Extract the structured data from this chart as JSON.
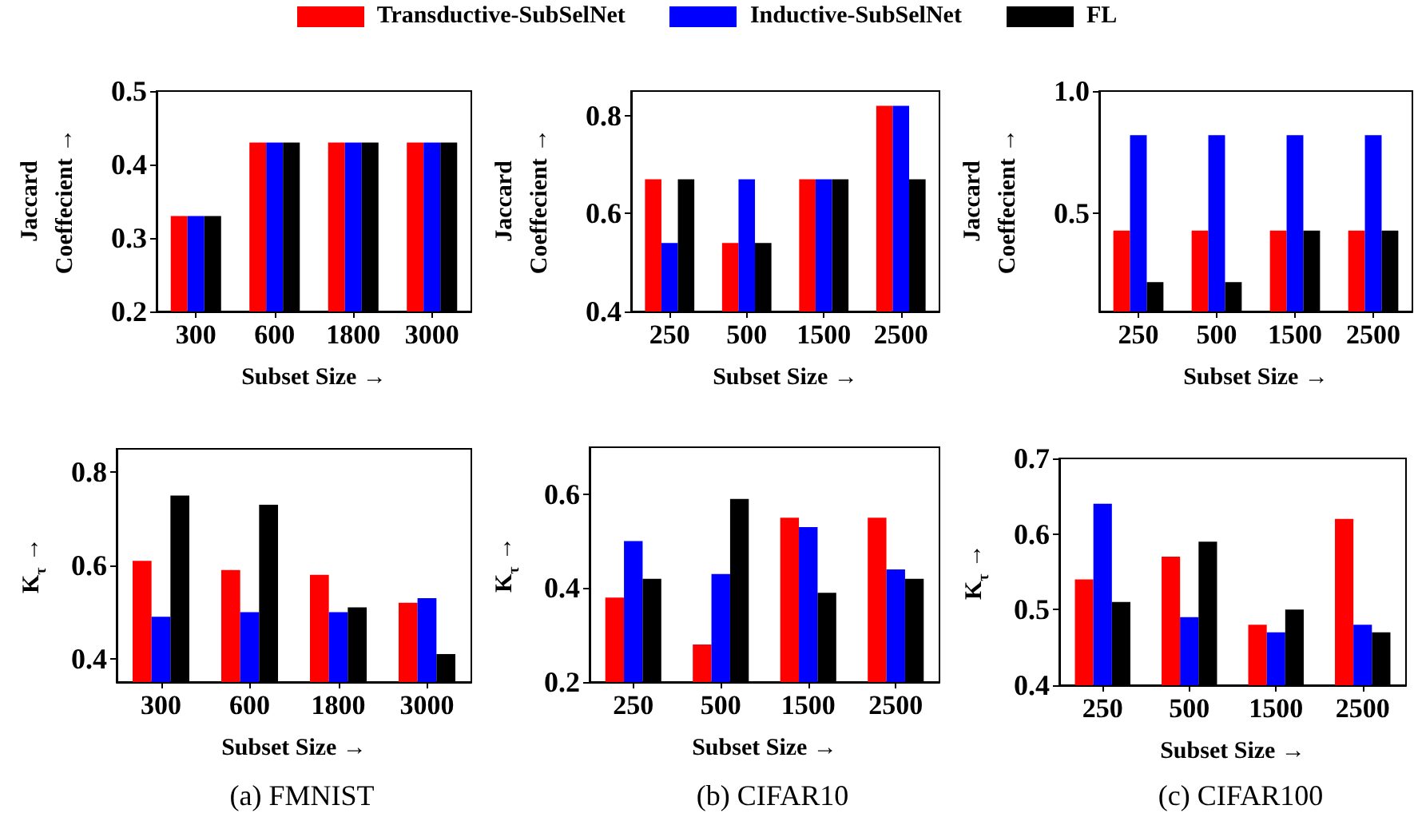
{
  "chart_data": [
    {
      "type": "bar",
      "xlabel": "Subset Size →",
      "ylabel": "Jaccard\nCoeffecient →",
      "categories": [
        "300",
        "600",
        "1800",
        "3000"
      ],
      "ylim": [
        0.2,
        0.5
      ],
      "yticks": [
        0.2,
        0.3,
        0.4,
        0.5
      ],
      "grid": false,
      "legend": "top",
      "series": [
        {
          "name": "Transductive-SubSelNet",
          "color": "#ff0000",
          "values": [
            0.33,
            0.43,
            0.43,
            0.43
          ]
        },
        {
          "name": "Inductive-SubSelNet",
          "color": "#0000ff",
          "values": [
            0.33,
            0.43,
            0.43,
            0.43
          ]
        },
        {
          "name": "FL",
          "color": "#000000",
          "values": [
            0.33,
            0.43,
            0.43,
            0.43
          ]
        }
      ]
    },
    {
      "type": "bar",
      "xlabel": "Subset Size →",
      "ylabel": "Jaccard\nCoeffecient →",
      "categories": [
        "250",
        "500",
        "1500",
        "2500"
      ],
      "ylim": [
        0.4,
        0.85
      ],
      "yticks": [
        0.4,
        0.6,
        0.8
      ],
      "grid": false,
      "series": [
        {
          "color": "#ff0000",
          "values": [
            0.67,
            0.54,
            0.67,
            0.82
          ]
        },
        {
          "color": "#0000ff",
          "values": [
            0.54,
            0.67,
            0.67,
            0.82
          ]
        },
        {
          "color": "#000000",
          "values": [
            0.67,
            0.54,
            0.67,
            0.67
          ]
        }
      ]
    },
    {
      "type": "bar",
      "xlabel": "Subset Size →",
      "ylabel": "Jaccard\nCoeffecient →",
      "categories": [
        "250",
        "500",
        "1500",
        "2500"
      ],
      "ylim": [
        0.1,
        1.0
      ],
      "yticks": [
        {
          "value": 0.5,
          "label": "0.5"
        },
        {
          "value": 1.0,
          "label": "1.0"
        }
      ],
      "grid": false,
      "series": [
        {
          "color": "#ff0000",
          "values": [
            0.43,
            0.43,
            0.43,
            0.43
          ]
        },
        {
          "color": "#0000ff",
          "values": [
            0.82,
            0.82,
            0.82,
            0.82
          ]
        },
        {
          "color": "#000000",
          "values": [
            0.22,
            0.22,
            0.43,
            0.43
          ]
        }
      ]
    },
    {
      "type": "bar",
      "xlabel": "Subset Size →",
      "ylabel": "K$_{τ}$ →",
      "categories": [
        "300",
        "600",
        "1800",
        "3000"
      ],
      "ylim": [
        0.35,
        0.85
      ],
      "yticks": [
        0.4,
        0.6,
        0.8
      ],
      "grid": false,
      "annotations": [
        "(a) FMNIST"
      ],
      "series": [
        {
          "color": "#ff0000",
          "values": [
            0.61,
            0.59,
            0.58,
            0.52
          ]
        },
        {
          "color": "#0000ff",
          "values": [
            0.49,
            0.5,
            0.5,
            0.53
          ]
        },
        {
          "color": "#000000",
          "values": [
            0.75,
            0.73,
            0.51,
            0.41
          ]
        }
      ]
    },
    {
      "type": "bar",
      "xlabel": "Subset Size →",
      "ylabel": "K$_{τ}$ →",
      "categories": [
        "250",
        "500",
        "1500",
        "2500"
      ],
      "ylim": [
        0.2,
        0.7
      ],
      "yticks": [
        0.2,
        0.4,
        0.6
      ],
      "grid": false,
      "annotations": [
        "(b) CIFAR10"
      ],
      "series": [
        {
          "color": "#ff0000",
          "values": [
            0.38,
            0.28,
            0.55,
            0.55
          ]
        },
        {
          "color": "#0000ff",
          "values": [
            0.5,
            0.43,
            0.53,
            0.44
          ]
        },
        {
          "color": "#000000",
          "values": [
            0.42,
            0.59,
            0.39,
            0.42
          ]
        }
      ]
    },
    {
      "type": "bar",
      "xlabel": "Subset Size →",
      "ylabel": "K$_{τ}$ →",
      "categories": [
        "250",
        "500",
        "1500",
        "2500"
      ],
      "ylim": [
        0.4,
        0.7
      ],
      "yticks": [
        0.4,
        0.5,
        0.6,
        0.7
      ],
      "grid": false,
      "annotations": [
        "(c) CIFAR100"
      ],
      "series": [
        {
          "color": "#ff0000",
          "values": [
            0.54,
            0.57,
            0.48,
            0.62
          ]
        },
        {
          "color": "#0000ff",
          "values": [
            0.64,
            0.49,
            0.47,
            0.48
          ]
        },
        {
          "color": "#000000",
          "values": [
            0.51,
            0.59,
            0.5,
            0.47
          ]
        }
      ]
    }
  ]
}
